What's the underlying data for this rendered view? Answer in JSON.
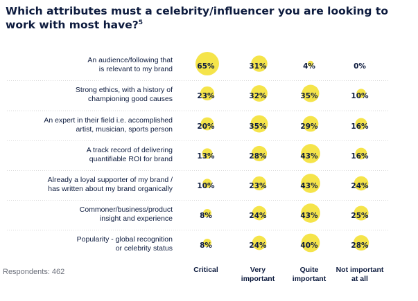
{
  "title": "Which attributes must a celebrity/influencer you are looking to work with most have?",
  "title_footnote": "5",
  "respondents": "Respondents: 462",
  "colors": {
    "bubble": "#f5e44a",
    "divider": "#d9d9d9",
    "text": "#0d1b3e"
  },
  "chart_data": {
    "type": "bubble-table",
    "title": "Which attributes must a celebrity/influencer you are looking to work with most have?",
    "columns": [
      [
        "Critical"
      ],
      [
        "Very",
        "important"
      ],
      [
        "Quite",
        "important"
      ],
      [
        "Not important",
        "at all"
      ]
    ],
    "rows": [
      {
        "label": [
          "An audience/following that",
          "is relevant to my brand"
        ],
        "values": [
          65,
          31,
          4,
          0
        ]
      },
      {
        "label": [
          "Strong ethics, with a history of",
          "championing good causes"
        ],
        "values": [
          23,
          32,
          35,
          10
        ]
      },
      {
        "label": [
          "An expert in their field i.e. accomplished",
          "artist, musician, sports person"
        ],
        "values": [
          20,
          35,
          29,
          16
        ]
      },
      {
        "label": [
          "A track record of delivering",
          "quantifiable ROI for brand"
        ],
        "values": [
          13,
          28,
          43,
          16
        ]
      },
      {
        "label": [
          "Already a loyal supporter of my brand /",
          "has written about my brand organically"
        ],
        "values": [
          10,
          23,
          43,
          24
        ]
      },
      {
        "label": [
          "Commoner/business/product",
          "insight and experience"
        ],
        "values": [
          8,
          24,
          43,
          25
        ]
      },
      {
        "label": [
          "Popularity - global recognition",
          "or celebrity status"
        ],
        "values": [
          8,
          24,
          40,
          28
        ]
      }
    ],
    "unit": "%"
  }
}
